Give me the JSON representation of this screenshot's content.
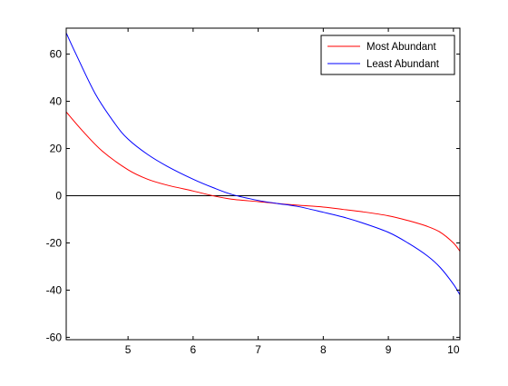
{
  "chart_data": {
    "type": "line",
    "title": "",
    "xlabel": "",
    "ylabel": "",
    "xlim": [
      4.05,
      10.1
    ],
    "ylim": [
      -61,
      71
    ],
    "grid": false,
    "legend_position": "top-right",
    "x_ticks": [
      5,
      6,
      7,
      8,
      9,
      10
    ],
    "y_ticks": [
      60,
      40,
      20,
      0,
      -20,
      -40,
      -60
    ],
    "zero_line": true,
    "series": [
      {
        "name": "Most Abundant",
        "color": "#ff0000",
        "x": [
          4.05,
          4.3,
          4.6,
          5.0,
          5.3,
          5.6,
          6.0,
          6.3,
          6.6,
          7.0,
          7.3,
          7.6,
          8.0,
          8.3,
          8.6,
          9.0,
          9.3,
          9.6,
          9.8,
          10.0,
          10.1
        ],
        "y": [
          35.5,
          27.5,
          19.0,
          11.0,
          7.0,
          4.5,
          2.0,
          0.0,
          -1.5,
          -2.5,
          -3.3,
          -4.0,
          -4.8,
          -5.8,
          -6.8,
          -8.5,
          -10.5,
          -13.0,
          -15.5,
          -20.0,
          -23.5
        ]
      },
      {
        "name": "Least Abundant",
        "color": "#0000ff",
        "x": [
          4.05,
          4.2,
          4.5,
          4.8,
          5.0,
          5.3,
          5.6,
          6.0,
          6.3,
          6.6,
          7.0,
          7.3,
          7.6,
          8.0,
          8.3,
          8.6,
          9.0,
          9.3,
          9.6,
          9.8,
          10.0,
          10.1
        ],
        "y": [
          69.0,
          60.0,
          43.0,
          30.5,
          24.0,
          17.5,
          12.5,
          7.0,
          3.5,
          0.5,
          -2.0,
          -3.3,
          -4.5,
          -7.0,
          -9.0,
          -11.5,
          -15.5,
          -20.0,
          -25.5,
          -30.5,
          -37.5,
          -42.0
        ]
      }
    ]
  }
}
